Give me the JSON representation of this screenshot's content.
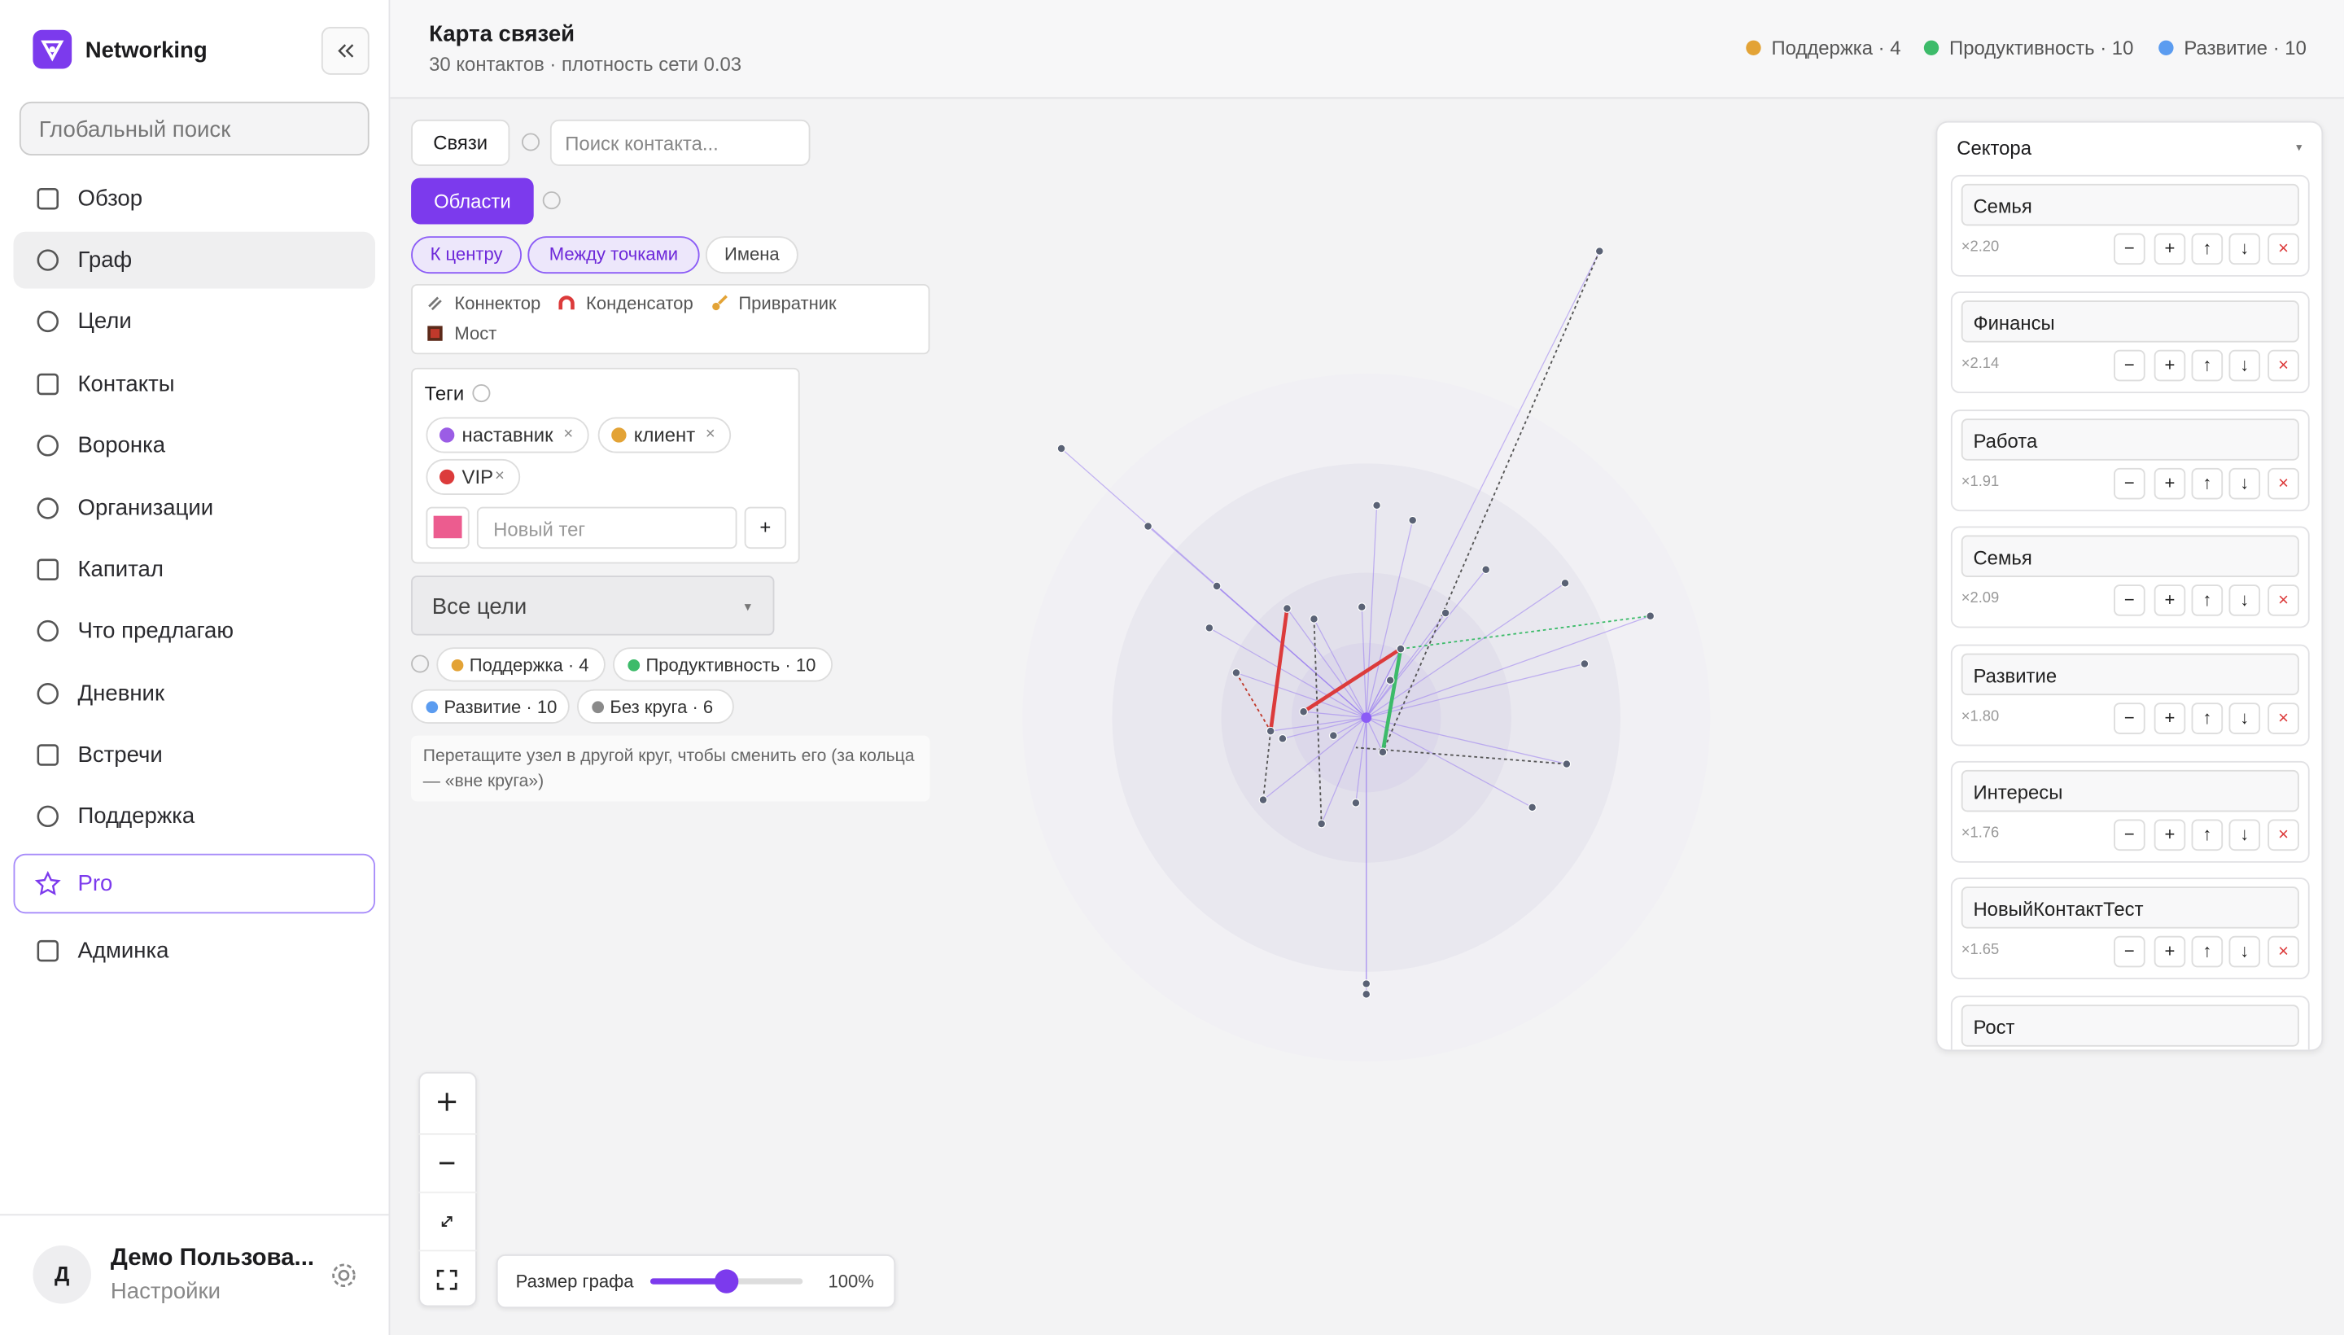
{
  "sidebar": {
    "brand": "Networking",
    "search": "Глобальный поиск",
    "nav": [
      "Обзор",
      "Граф",
      "Цели",
      "Контакты",
      "Воронка",
      "Организации",
      "Капитал",
      "Что предлагаю",
      "Дневник",
      "Встречи",
      "Поддержка",
      "Pro",
      "Админка"
    ],
    "user": {
      "avatar": "Д",
      "name": "Демо Пользова...",
      "link": "Настройки"
    }
  },
  "header": {
    "title": "Карта связей",
    "subtitle": "30 контактов · плотность сети 0.03",
    "legend": [
      {
        "label": "Поддержка · 4",
        "color": "#e3a336"
      },
      {
        "label": "Продуктивность · 10",
        "color": "#3dbb6a"
      },
      {
        "label": "Развитие · 10",
        "color": "#5b9cf0"
      }
    ]
  },
  "toolbar": {
    "links_button": "Связи",
    "contact_search": "Поиск контакта...",
    "areas_button": "Области",
    "modes": [
      "К центру",
      "Между точками",
      "Имена"
    ],
    "roles": [
      "Коннектор",
      "Конденсатор",
      "Привратник",
      "Мост"
    ]
  },
  "tags": {
    "title": "Теги",
    "items": [
      {
        "name": "наставник",
        "color": "#9b5de5"
      },
      {
        "name": "клиент",
        "color": "#e3a336"
      },
      {
        "name": "VIP",
        "color": "#dc3b3b"
      }
    ],
    "remove": "×",
    "new_color": "#ec5c8f",
    "new_placeholder": "Новый тег",
    "add": "+"
  },
  "goals": {
    "select": "Все цели",
    "select_arrow": "▾",
    "circles": [
      {
        "label": "Поддержка · 4",
        "color": "#e3a336"
      },
      {
        "label": "Продуктивность · 10",
        "color": "#3dbb6a"
      },
      {
        "label": "Развитие · 10",
        "color": "#5b9cf0"
      },
      {
        "label": "Без круга · 6",
        "color": "#8a8a8a"
      }
    ],
    "hint": "Перетащите узел в другой круг, чтобы сменить его (за кольца — «вне круга»)"
  },
  "graph_size": {
    "label": "Размер графа",
    "value": "100%"
  },
  "sectors": {
    "title": "Сектора",
    "arrow": "▾",
    "buttons": [
      "−",
      "+",
      "↑",
      "↓",
      "×"
    ],
    "items": [
      {
        "name": "Семья",
        "weight": "×2.20"
      },
      {
        "name": "Финансы",
        "weight": "×2.14"
      },
      {
        "name": "Работа",
        "weight": "×1.91"
      },
      {
        "name": "Семья",
        "weight": "×2.09"
      },
      {
        "name": "Развитие",
        "weight": "×1.80"
      },
      {
        "name": "Интересы",
        "weight": "×1.76"
      },
      {
        "name": "НовыйКонтактТест",
        "weight": "×1.65"
      },
      {
        "name": "Рост"
      }
    ]
  }
}
